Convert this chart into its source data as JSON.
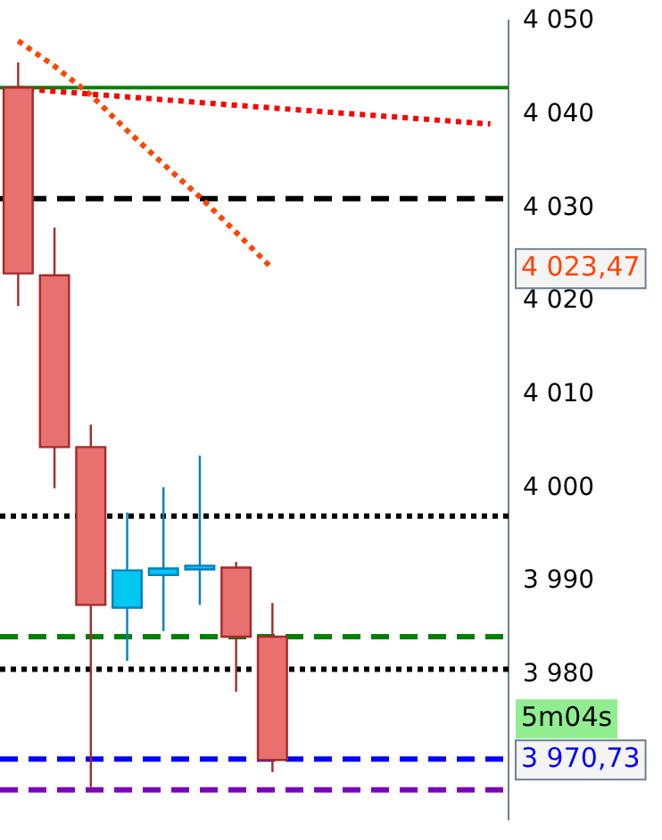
{
  "chart_data": {
    "type": "candlestick",
    "categories": [
      null,
      null,
      null,
      null,
      null,
      null,
      null,
      null,
      null,
      null,
      null,
      null,
      null,
      null
    ],
    "ohlc": [
      [
        4042.9,
        4045.6,
        4019.5,
        4023.0
      ],
      [
        4022.8,
        4027.9,
        4000.0,
        4004.4
      ],
      [
        4004.4,
        4006.8,
        3968.0,
        3987.5
      ],
      [
        3987.2,
        3997.4,
        3981.5,
        3991.2
      ],
      [
        3990.7,
        4000.1,
        3984.7,
        3991.4
      ],
      [
        3991.3,
        4003.5,
        3987.5,
        3991.7
      ],
      [
        3991.5,
        3992.1,
        3978.2,
        3984.1
      ],
      [
        3984.1,
        3987.7,
        3969.6,
        3970.9
      ],
      null,
      null,
      null,
      null,
      null,
      null
    ],
    "colors": [
      "#e8706f",
      "#e8706f",
      "#e8706f",
      "#00c8f0",
      "#00c8f0",
      "#00c8f0",
      "#e8706f",
      "#e8706f",
      null,
      null,
      null,
      null,
      null,
      null
    ],
    "series": [
      {
        "type": "line",
        "color": "#ff0000",
        "line_style": "dotted",
        "values": [
          4042.8,
          null,
          null,
          null,
          null,
          null,
          4041.0,
          null,
          null,
          null,
          null,
          null,
          null,
          4039.0
        ]
      },
      {
        "type": "line",
        "color": "#ff4500",
        "line_style": "dotted",
        "values": [
          4047.9,
          4045.2,
          4042.1,
          4038.3,
          4034.7,
          4031.2,
          4027.4,
          4023.5,
          null,
          null,
          null,
          null,
          null,
          null
        ]
      }
    ],
    "ylim": [
      3964.5,
      4050.1
    ],
    "yticks": [
      {
        "value": 4050,
        "label": "4 050"
      },
      {
        "value": 4040,
        "label": "4 040"
      },
      {
        "value": 4030,
        "label": "4 030"
      },
      {
        "value": 4020,
        "label": "4 020"
      },
      {
        "value": 4010,
        "label": "4 010"
      },
      {
        "value": 4000,
        "label": "4 000"
      },
      {
        "value": 3990,
        "label": "3 990"
      },
      {
        "value": 3980,
        "label": "3 980"
      }
    ],
    "tick_labels": "y",
    "ref_lines": [
      {
        "axis": "y",
        "value": 4042.9,
        "color": "#008000",
        "line_style": "solid"
      },
      {
        "axis": "y",
        "value": 4031.0,
        "color": "#000000",
        "line_style": "dashed"
      },
      {
        "axis": "y",
        "value": 3997.0,
        "color": "#000000",
        "line_style": "dotted"
      },
      {
        "axis": "y",
        "value": 3984.1,
        "color": "#008000",
        "line_style": "dashed"
      },
      {
        "axis": "y",
        "value": 3980.6,
        "color": "#000000",
        "line_style": "dotted"
      },
      {
        "axis": "y",
        "value": 3971.0,
        "color": "#0000ff",
        "line_style": "dashed"
      },
      {
        "axis": "y",
        "value": 3967.7,
        "color": "#7b00c0",
        "line_style": "dashed"
      }
    ],
    "annotations": [
      "4 023,47",
      "3 970,73",
      "5m04s"
    ]
  }
}
